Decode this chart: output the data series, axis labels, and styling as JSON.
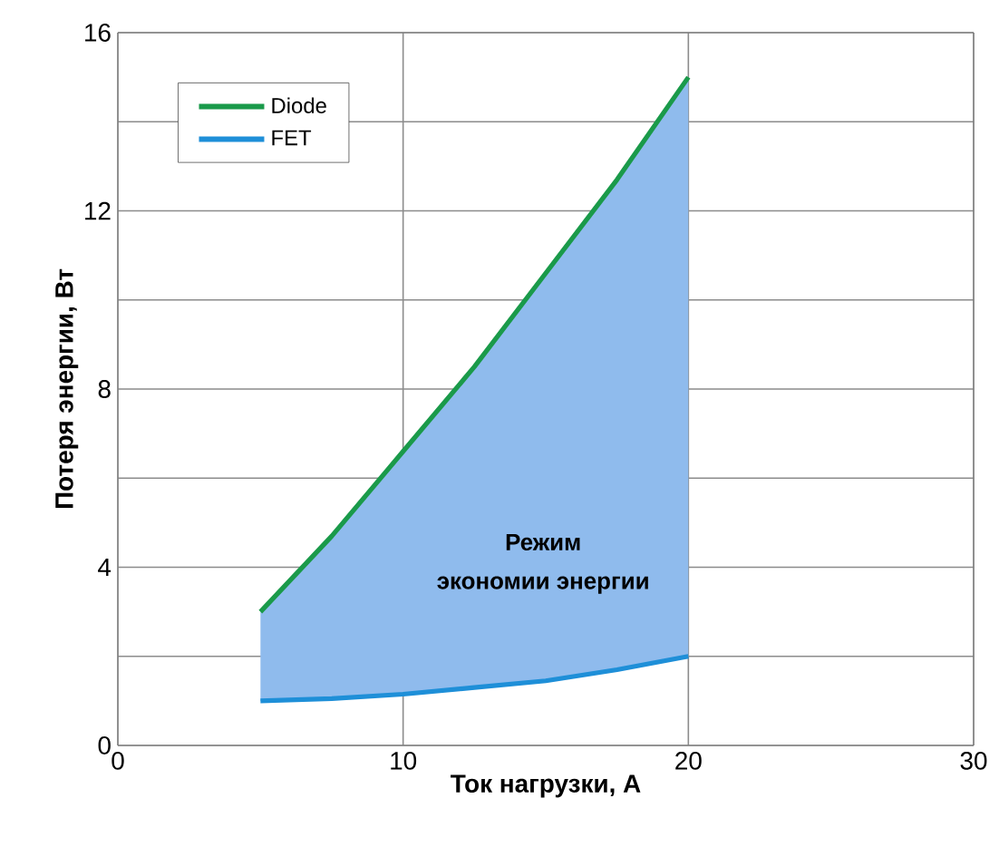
{
  "chart_data": {
    "type": "line",
    "xlabel": "Ток нагрузки, А",
    "ylabel": "Потеря энергии, Вт",
    "x": [
      5,
      7.5,
      10,
      12.5,
      15,
      17.5,
      20
    ],
    "series": [
      {
        "name": "Diode",
        "color": "#1a9a4a",
        "values": [
          3.0,
          4.7,
          6.6,
          8.5,
          10.6,
          12.7,
          15.0
        ],
        "lower": [
          1.0,
          1.05,
          1.15,
          1.3,
          1.45,
          1.7,
          2.0
        ],
        "upper": [
          3.0,
          4.7,
          6.6,
          8.5,
          10.6,
          12.7,
          15.0
        ]
      },
      {
        "name": "FET",
        "color": "#1e8fd8",
        "values": [
          1.0,
          1.05,
          1.15,
          1.3,
          1.45,
          1.7,
          2.0
        ]
      }
    ],
    "xlim": [
      0,
      30
    ],
    "ylim": [
      0,
      16
    ],
    "xticks": [
      0,
      10,
      20,
      30
    ],
    "yticks": [
      0,
      {
        "value": 2,
        "label": null
      },
      4,
      {
        "value": 6,
        "label": null
      },
      8,
      {
        "value": 10,
        "label": null
      },
      12,
      {
        "value": 14,
        "label": null
      },
      16
    ],
    "grid": true,
    "legend": "top left",
    "line_style": "solid",
    "annotations": [
      "Режим",
      "экономии энергии"
    ]
  }
}
